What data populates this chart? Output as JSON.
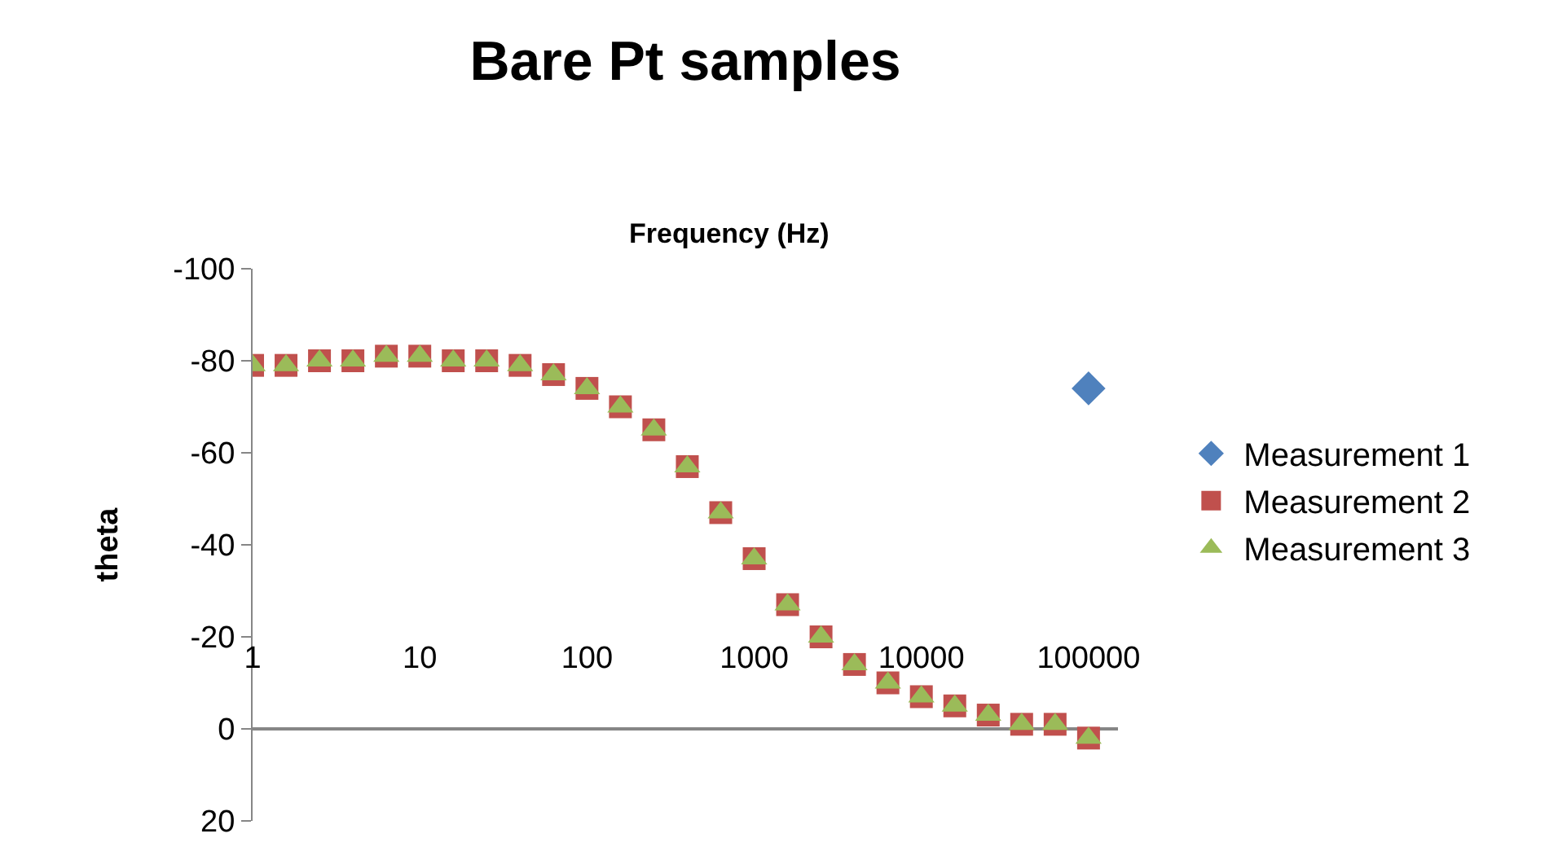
{
  "chart_data": {
    "type": "scatter",
    "title": "Bare Pt samples",
    "xlabel": "Frequency (Hz)",
    "ylabel": "theta",
    "log": "x",
    "xlim": [
      1,
      150000
    ],
    "xticks": [
      1,
      10,
      100,
      1000,
      10000,
      100000
    ],
    "ylim": [
      20,
      -100
    ],
    "yticks": [
      -100,
      -80,
      -60,
      -40,
      -20,
      0,
      20
    ],
    "legend": "right",
    "series": [
      {
        "name": "Measurement 1",
        "color": "#4f81bd",
        "marker": "diamond",
        "x": [
          100000
        ],
        "values": [
          -74
        ]
      },
      {
        "name": "Measurement 2",
        "color": "#c0504d",
        "marker": "square",
        "x": [
          1,
          1.585,
          2.512,
          3.981,
          6.31,
          10,
          15.85,
          25.12,
          39.81,
          63.1,
          100,
          158.5,
          251.2,
          398.1,
          631,
          1000,
          1585,
          2512,
          3981,
          6310,
          10000,
          15850,
          25120,
          39810,
          63100,
          100000
        ],
        "values": [
          -79,
          -79,
          -80,
          -80,
          -81,
          -81,
          -80,
          -80,
          -79,
          -77,
          -74,
          -70,
          -65,
          -57,
          -47,
          -37,
          -27,
          -20,
          -14,
          -10,
          -7,
          -5,
          -3,
          -1,
          -1,
          2
        ]
      },
      {
        "name": "Measurement 3",
        "color": "#9bbb59",
        "marker": "triangle",
        "x": [
          1,
          1.585,
          2.512,
          3.981,
          6.31,
          10,
          15.85,
          25.12,
          39.81,
          63.1,
          100,
          158.5,
          251.2,
          398.1,
          631,
          1000,
          1585,
          2512,
          3981,
          6310,
          10000,
          15850,
          25120,
          39810,
          63100,
          100000
        ],
        "values": [
          -79,
          -79,
          -80,
          -80,
          -81,
          -81,
          -80,
          -80,
          -79,
          -77,
          -74,
          -70,
          -65,
          -57,
          -47,
          -37,
          -27,
          -20,
          -14,
          -10,
          -7,
          -5,
          -3,
          -1,
          -1,
          2
        ]
      }
    ]
  }
}
